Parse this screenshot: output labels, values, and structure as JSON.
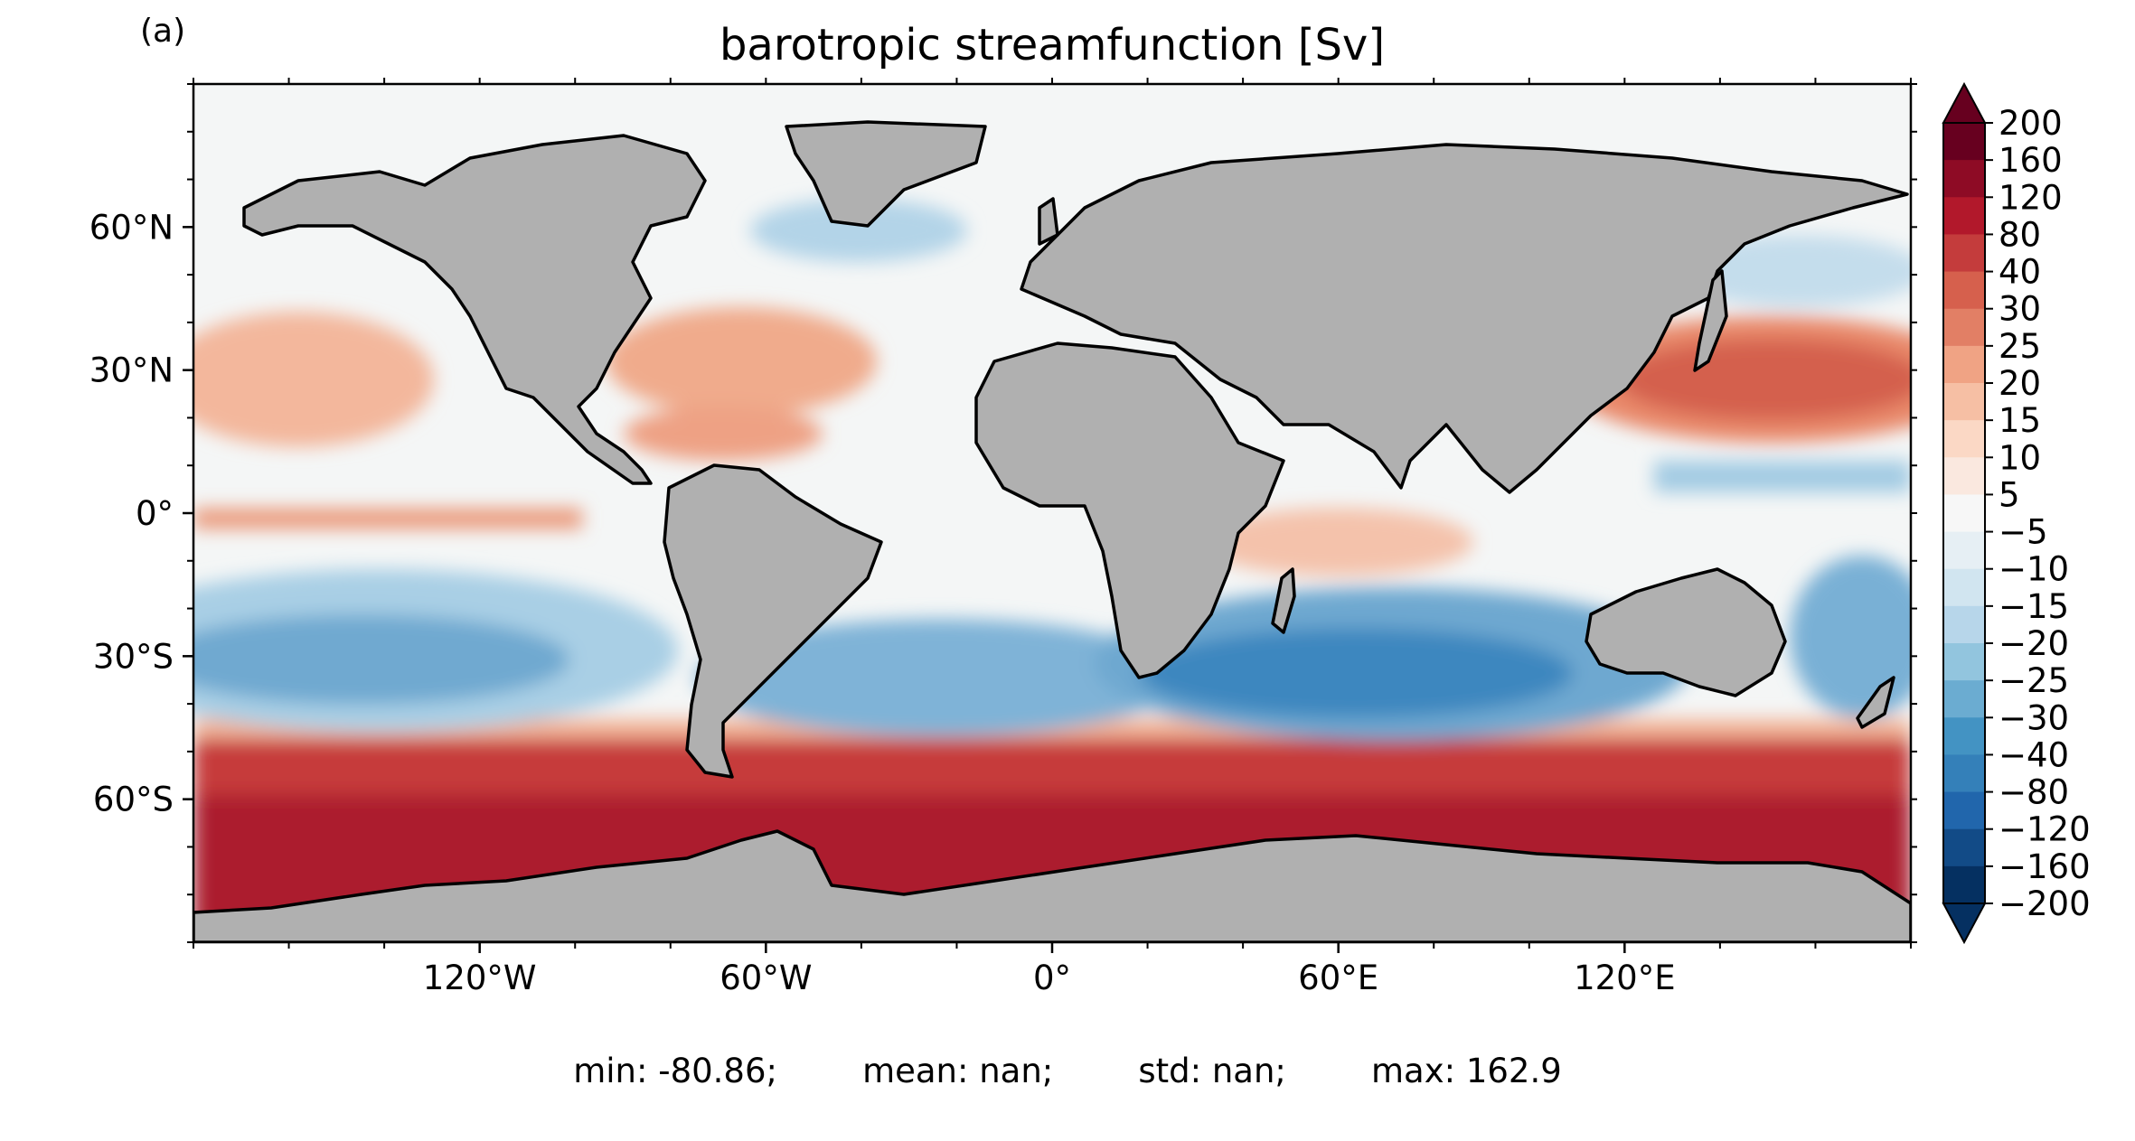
{
  "panel_label": "(a)",
  "title": "barotropic streamfunction [Sv]",
  "lon_ticks": [
    "120°W",
    "60°W",
    "0°",
    "60°E",
    "120°E"
  ],
  "lat_ticks": [
    "60°N",
    "30°N",
    "0°",
    "30°S",
    "60°S"
  ],
  "colorbar": {
    "levels": [
      200,
      160,
      120,
      80,
      40,
      30,
      25,
      20,
      15,
      10,
      5,
      -5,
      -10,
      -15,
      -20,
      -25,
      -30,
      -40,
      -80,
      -120,
      -160,
      -200
    ],
    "labels": [
      "200",
      "160",
      "120",
      "80",
      "40",
      "30",
      "25",
      "20",
      "15",
      "10",
      "5",
      "−5",
      "−10",
      "−15",
      "−20",
      "−25",
      "−30",
      "−40",
      "−80",
      "−120",
      "−160",
      "−200"
    ],
    "colors": [
      "#67001f",
      "#8e0b25",
      "#b2182b",
      "#c43c3c",
      "#d6604d",
      "#e27f65",
      "#f0a384",
      "#f6bfa4",
      "#fbd8c5",
      "#fae8df",
      "#f7f7f7",
      "#e6eff4",
      "#d1e5f0",
      "#b7d6ea",
      "#92c5de",
      "#6bacd1",
      "#4393c3",
      "#3480b9",
      "#2166ac",
      "#124b87",
      "#053061"
    ],
    "extend": "both"
  },
  "stats": {
    "min": "min: -80.86;",
    "mean": "mean: nan;",
    "std": "std: nan;",
    "max": "max: 162.9"
  },
  "colors": {
    "land": "#b0b0b0",
    "ocean_neutral": "#f7f7f7",
    "coastline": "#000000"
  }
}
